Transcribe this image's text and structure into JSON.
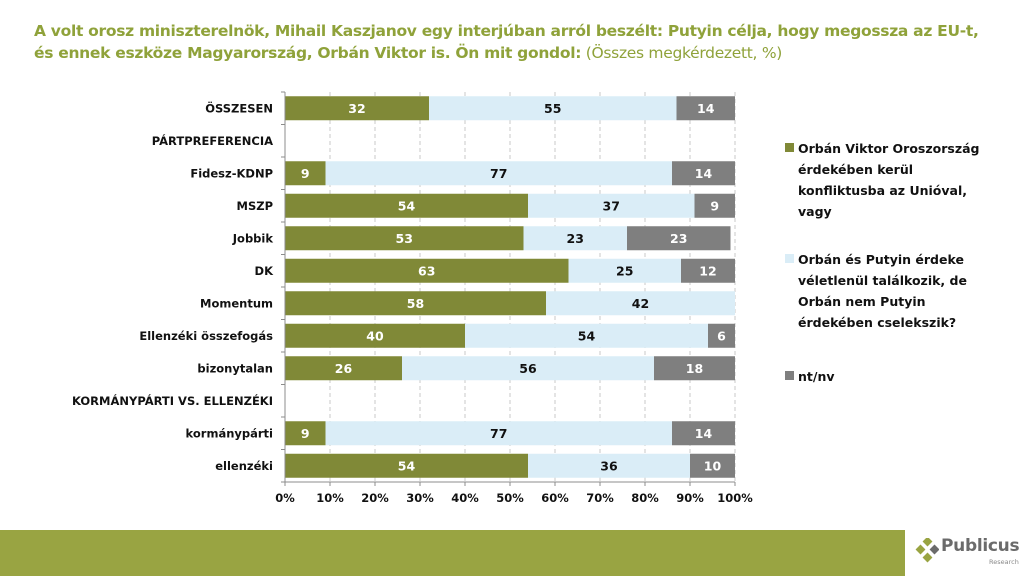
{
  "title": {
    "bold": "A volt orosz miniszterelnök, Mihail Kaszjanov egy interjúban arról beszélt: Putyin célja, hogy megossza az EU-t, és ennek eszköze Magyarország, Orbán Viktor is. Ön mit gondol:",
    "normal": " (Összes megkérdezett, %)"
  },
  "chart_data": {
    "type": "bar",
    "orientation": "horizontal",
    "stacked": true,
    "percent_stacked": true,
    "categories": [
      "ÖSSZESEN",
      "PÁRTPREFERENCIA",
      "Fidesz-KDNP",
      "MSZP",
      "Jobbik",
      "DK",
      "Momentum",
      "Ellenzéki összefogás",
      "bizonytalan",
      "KORMÁNYPÁRTI VS. ELLENZÉKI",
      "kormánypárti",
      "ellenzéki"
    ],
    "series": [
      {
        "name": "Orbán Viktor Oroszország érdekében kerül konfliktusba az Unióval, vagy",
        "color": "#808937",
        "label_color": "#ffffff",
        "values": [
          32,
          null,
          9,
          54,
          53,
          63,
          58,
          40,
          26,
          null,
          9,
          54
        ]
      },
      {
        "name": "Orbán és Putyin érdeke véletlenül találkozik, de Orbán nem Putyin érdekében cselekszik?",
        "color": "#daedf7",
        "label_color": "#111111",
        "values": [
          55,
          null,
          77,
          37,
          23,
          25,
          42,
          54,
          56,
          null,
          77,
          36
        ]
      },
      {
        "name": "nt/nv",
        "color": "#7f7f7f",
        "label_color": "#ffffff",
        "values": [
          14,
          null,
          14,
          9,
          23,
          12,
          null,
          6,
          18,
          null,
          14,
          10
        ]
      }
    ],
    "xlim": [
      0,
      100
    ],
    "xticks": [
      "0%",
      "10%",
      "20%",
      "30%",
      "40%",
      "50%",
      "60%",
      "70%",
      "80%",
      "90%",
      "100%"
    ],
    "grid": "vertical dashed",
    "legend_position": "right",
    "xlabel": "",
    "ylabel": ""
  },
  "footer": {
    "logo_name": "Publicus",
    "logo_sub": "Research",
    "band_color": "#99a442"
  }
}
